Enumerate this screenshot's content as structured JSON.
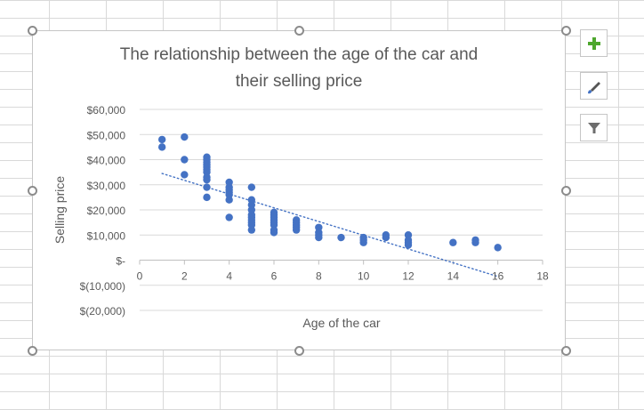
{
  "chart_data": {
    "type": "scatter",
    "title_lines": [
      "The relationship between the age of the car and",
      "their selling price"
    ],
    "xlabel": "Age of the car",
    "ylabel": "Selling price",
    "xlim": [
      0,
      18
    ],
    "ylim": [
      -20000,
      60000
    ],
    "x_ticks": [
      0,
      2,
      4,
      6,
      8,
      10,
      12,
      14,
      16,
      18
    ],
    "x_tick_labels": [
      "0",
      "2",
      "4",
      "6",
      "8",
      "10",
      "12",
      "14",
      "16",
      "18"
    ],
    "y_ticks": [
      60000,
      50000,
      40000,
      30000,
      20000,
      10000,
      0,
      -10000,
      -20000
    ],
    "y_tick_labels": [
      "$60,000",
      "$50,000",
      "$40,000",
      "$30,000",
      "$20,000",
      "$10,000",
      "$-",
      "$(10,000)",
      "$(20,000)"
    ],
    "grid": "horizontal",
    "legend": "none",
    "trendline": {
      "type": "linear",
      "x_start": 1,
      "x_end": 16,
      "y_start": 34500,
      "y_end": -6500,
      "style": "dotted"
    },
    "series": [
      {
        "x": [
          1,
          1,
          2,
          2,
          2,
          3,
          3,
          3,
          3,
          3,
          3,
          3,
          3,
          3,
          3,
          3,
          4,
          4,
          4,
          4,
          4,
          4,
          4,
          5,
          5,
          5,
          5,
          5,
          5,
          5,
          5,
          5,
          5,
          6,
          6,
          6,
          6,
          6,
          6,
          6,
          6,
          7,
          7,
          7,
          7,
          7,
          8,
          8,
          8,
          8,
          9,
          10,
          10,
          10,
          11,
          11,
          12,
          12,
          12,
          12,
          14,
          15,
          15,
          16
        ],
        "y": [
          48000,
          45000,
          49000,
          40000,
          34000,
          41000,
          40000,
          38000,
          36000,
          35000,
          33000,
          32000,
          29000,
          25000,
          39000,
          37000,
          31000,
          29000,
          28000,
          27000,
          26000,
          24000,
          17000,
          29000,
          24000,
          22000,
          20000,
          18000,
          17000,
          16000,
          15000,
          14000,
          12000,
          19000,
          18000,
          17000,
          16000,
          15000,
          14000,
          12000,
          11000,
          16000,
          15000,
          14000,
          13000,
          12000,
          13000,
          11000,
          10000,
          9000,
          9000,
          9000,
          8000,
          7000,
          10000,
          9000,
          10000,
          8000,
          7000,
          6000,
          7000,
          8000,
          7000,
          5000
        ]
      }
    ]
  },
  "colors": {
    "marker": "#4472c4",
    "trendline": "#4472c4",
    "gridline": "#d9d9d9",
    "text": "#595959",
    "add_icon": "#4ea72e"
  },
  "side_buttons": [
    {
      "icon": "plus-icon"
    },
    {
      "icon": "brush-icon"
    },
    {
      "icon": "filter-icon"
    }
  ]
}
